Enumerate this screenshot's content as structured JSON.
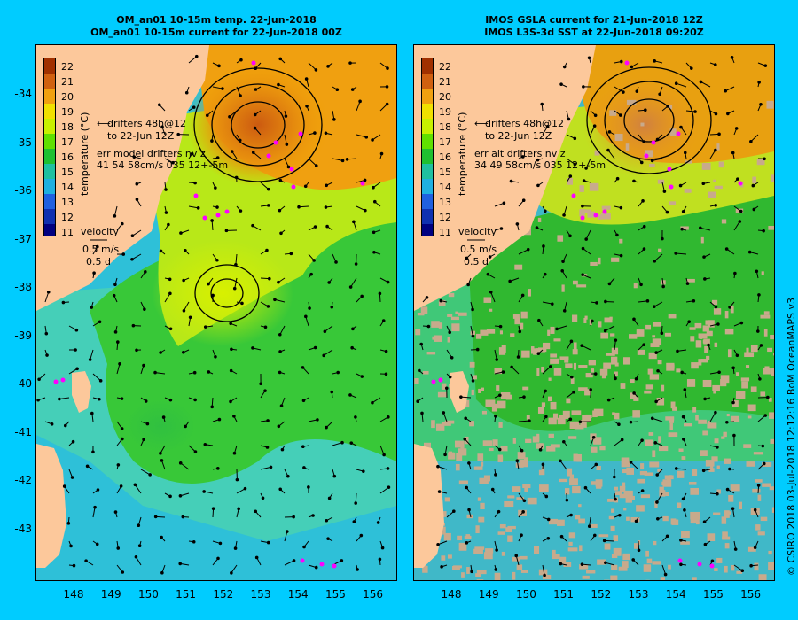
{
  "left_panel": {
    "title_line1": "OM_an01 10-15m temp. 22-Jun-2018",
    "title_line2": "OM_an01 10-15m current for 22-Jun-2018 00Z",
    "colorbar_label": "temperature (°C)",
    "drifters_line1": "drifters 48h@12",
    "drifters_line2": "to 22-Jun 12Z",
    "err_line1": "err model drifters nv z",
    "err_line2": "41 54 58cm/s 035 12+-5m",
    "velocity_label": "velocity",
    "velocity_scale1": "0.5 m/s",
    "velocity_scale2": "0.5 d"
  },
  "right_panel": {
    "title_line1": "IMOS GSLA current for 21-Jun-2018 12Z",
    "title_line2": "IMOS L3S-3d SST at 22-Jun-2018 09:20Z",
    "colorbar_label": "temperature (°C)",
    "drifters_line1": "drifters 48h@12",
    "drifters_line2": "to 22-Jun 12Z",
    "err_line1": "err alt drifters nv z",
    "err_line2": "34 49 58cm/s 035 12+-5m",
    "velocity_label": "velocity",
    "velocity_scale1": "0.5 m/s",
    "velocity_scale2": "0.5 d"
  },
  "colorbar_ticks": [
    "22",
    "21",
    "20",
    "19",
    "18",
    "17",
    "16",
    "15",
    "14",
    "13",
    "12",
    "11"
  ],
  "lat_ticks": [
    "-34",
    "-35",
    "-36",
    "-37",
    "-38",
    "-39",
    "-40",
    "-41",
    "-42",
    "-43"
  ],
  "lon_ticks": [
    "148",
    "149",
    "150",
    "151",
    "152",
    "153",
    "154",
    "155",
    "156"
  ],
  "credit": "© CSIRO 2018   03-Jul-2018 12:12:16 BoM OceanMAPS v3",
  "colors": {
    "background": "#00ccff",
    "land": "#fcc89b",
    "cloud_mask": "#c8aa8c",
    "drifter": "#ff00ff",
    "arrow": "#000000"
  }
}
